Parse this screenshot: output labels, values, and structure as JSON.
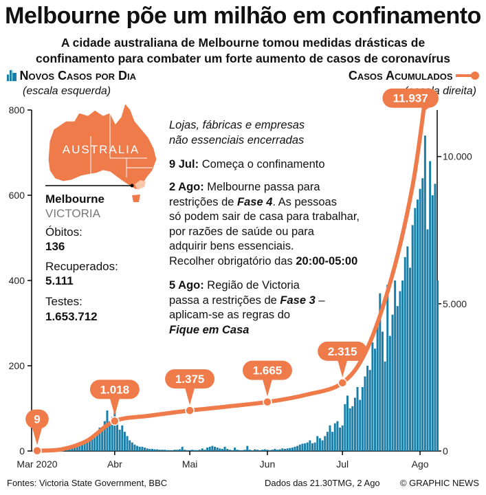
{
  "header": {
    "title": "Melbourne põe um milhão em confinamento",
    "subtitle_line1": "A cidade australiana de Melbourne tomou medidas drásticas de",
    "subtitle_line2": "confinamento para combater um forte aumento de casos de coronavírus"
  },
  "legend": {
    "left_label": "Novos Casos por Dia",
    "left_scale": "(escala esquerda)",
    "right_label": "Casos Acumulados",
    "right_scale": "(escala direita)",
    "bar_color": "#1a7fa8",
    "line_color": "#f07b4a"
  },
  "map": {
    "country_label": "AUSTRALIA",
    "city": "Melbourne",
    "state": "VICTORIA",
    "deaths_label": "Óbitos:",
    "deaths_value": "136",
    "recovered_label": "Recuperados:",
    "recovered_value": "5.111",
    "tests_label": "Testes:",
    "tests_value": "1.653.712"
  },
  "annotations": {
    "closed_line1": "Lojas, fábricas e empresas",
    "closed_line2": "não essenciais encerradas",
    "jul9_date": "9 Jul:",
    "jul9_text": " Começa o confinamento",
    "aug2_date": "2 Ago:",
    "aug2_l1": " Melbourne passa para",
    "aug2_l2a": "restrições de ",
    "aug2_phase": "Fase 4",
    "aug2_l2b": ". As pessoas",
    "aug2_l3": "só podem sair de casa para trabalhar,",
    "aug2_l4": "por razões de saúde ou para",
    "aug2_l5": "adquirir bens essenciais.",
    "aug2_l6a": "Recolher obrigatório das ",
    "aug2_curfew": "20:00-05:00",
    "aug5_date": "5 Ago:",
    "aug5_l1": " Região de Victoria",
    "aug5_l2a": "passa a restrições de ",
    "aug5_phase": "Fase 3",
    "aug5_l2b": " –",
    "aug5_l3": "aplicam-se as regras do",
    "aug5_l4": "Fique em Casa"
  },
  "footer": {
    "sources": "Fontes: Victoria State Government, BBC",
    "date": "Dados das 21.30TMG, 2 Ago",
    "credit": "© GRAPHIC NEWS"
  },
  "chart_data": {
    "type": "bar",
    "combo": "bar + line (dual axis)",
    "left_axis": {
      "label": "Novos Casos por Dia",
      "ylim": [
        0,
        800
      ],
      "ticks": [
        "0",
        "200",
        "400",
        "600",
        "800"
      ]
    },
    "right_axis": {
      "label": "Casos Acumulados",
      "ylim": [
        0,
        12000
      ],
      "ticks": [
        "0",
        "5.000",
        "10.000"
      ]
    },
    "x_ticks": [
      "Mar 2020",
      "Abr",
      "Mai",
      "Jun",
      "Jul",
      "Ago"
    ],
    "x_tick_day": [
      0,
      31,
      61,
      92,
      122,
      153
    ],
    "bars_start_date": "2020-03-01",
    "daily_new_cases": [
      0,
      0,
      0,
      0,
      1,
      1,
      1,
      1,
      2,
      2,
      3,
      4,
      4,
      6,
      7,
      9,
      10,
      15,
      20,
      18,
      25,
      28,
      30,
      40,
      45,
      55,
      50,
      70,
      95,
      70,
      80,
      110,
      75,
      50,
      60,
      45,
      35,
      25,
      20,
      15,
      12,
      10,
      10,
      8,
      6,
      5,
      5,
      4,
      4,
      3,
      3,
      3,
      2,
      2,
      2,
      3,
      3,
      4,
      10,
      3,
      2,
      2,
      3,
      2,
      2,
      3,
      6,
      3,
      8,
      10,
      12,
      10,
      8,
      6,
      5,
      10,
      5,
      3,
      2,
      8,
      3,
      2,
      2,
      3,
      12,
      3,
      1,
      4,
      3,
      2,
      3,
      4,
      3,
      2,
      3,
      5,
      3,
      4,
      6,
      5,
      6,
      7,
      8,
      10,
      12,
      15,
      17,
      18,
      20,
      25,
      18,
      20,
      35,
      30,
      25,
      35,
      45,
      60,
      45,
      65,
      70,
      55,
      60,
      110,
      130,
      100,
      105,
      125,
      150,
      120,
      150,
      175,
      200,
      190,
      255,
      240,
      300,
      370,
      280,
      210,
      390,
      270,
      320,
      400,
      340,
      375,
      400,
      455,
      480,
      430,
      530,
      570,
      590,
      615,
      640,
      740,
      520,
      680,
      600,
      627,
      400
    ],
    "cumulative": [
      [
        0,
        9
      ],
      [
        10,
        60
      ],
      [
        20,
        350
      ],
      [
        31,
        1018
      ],
      [
        45,
        1200
      ],
      [
        61,
        1375
      ],
      [
        75,
        1500
      ],
      [
        92,
        1665
      ],
      [
        107,
        1900
      ],
      [
        122,
        2315
      ],
      [
        132,
        3500
      ],
      [
        142,
        6000
      ],
      [
        150,
        9000
      ],
      [
        155,
        11937
      ]
    ],
    "callouts": [
      {
        "day": 0,
        "value": 9,
        "label": "9"
      },
      {
        "day": 31,
        "value": 1018,
        "label": "1.018"
      },
      {
        "day": 61,
        "value": 1375,
        "label": "1.375"
      },
      {
        "day": 92,
        "value": 1665,
        "label": "1.665"
      },
      {
        "day": 122,
        "value": 2315,
        "label": "2.315"
      },
      {
        "day": 155,
        "value": 11937,
        "label": "11.937"
      }
    ]
  }
}
